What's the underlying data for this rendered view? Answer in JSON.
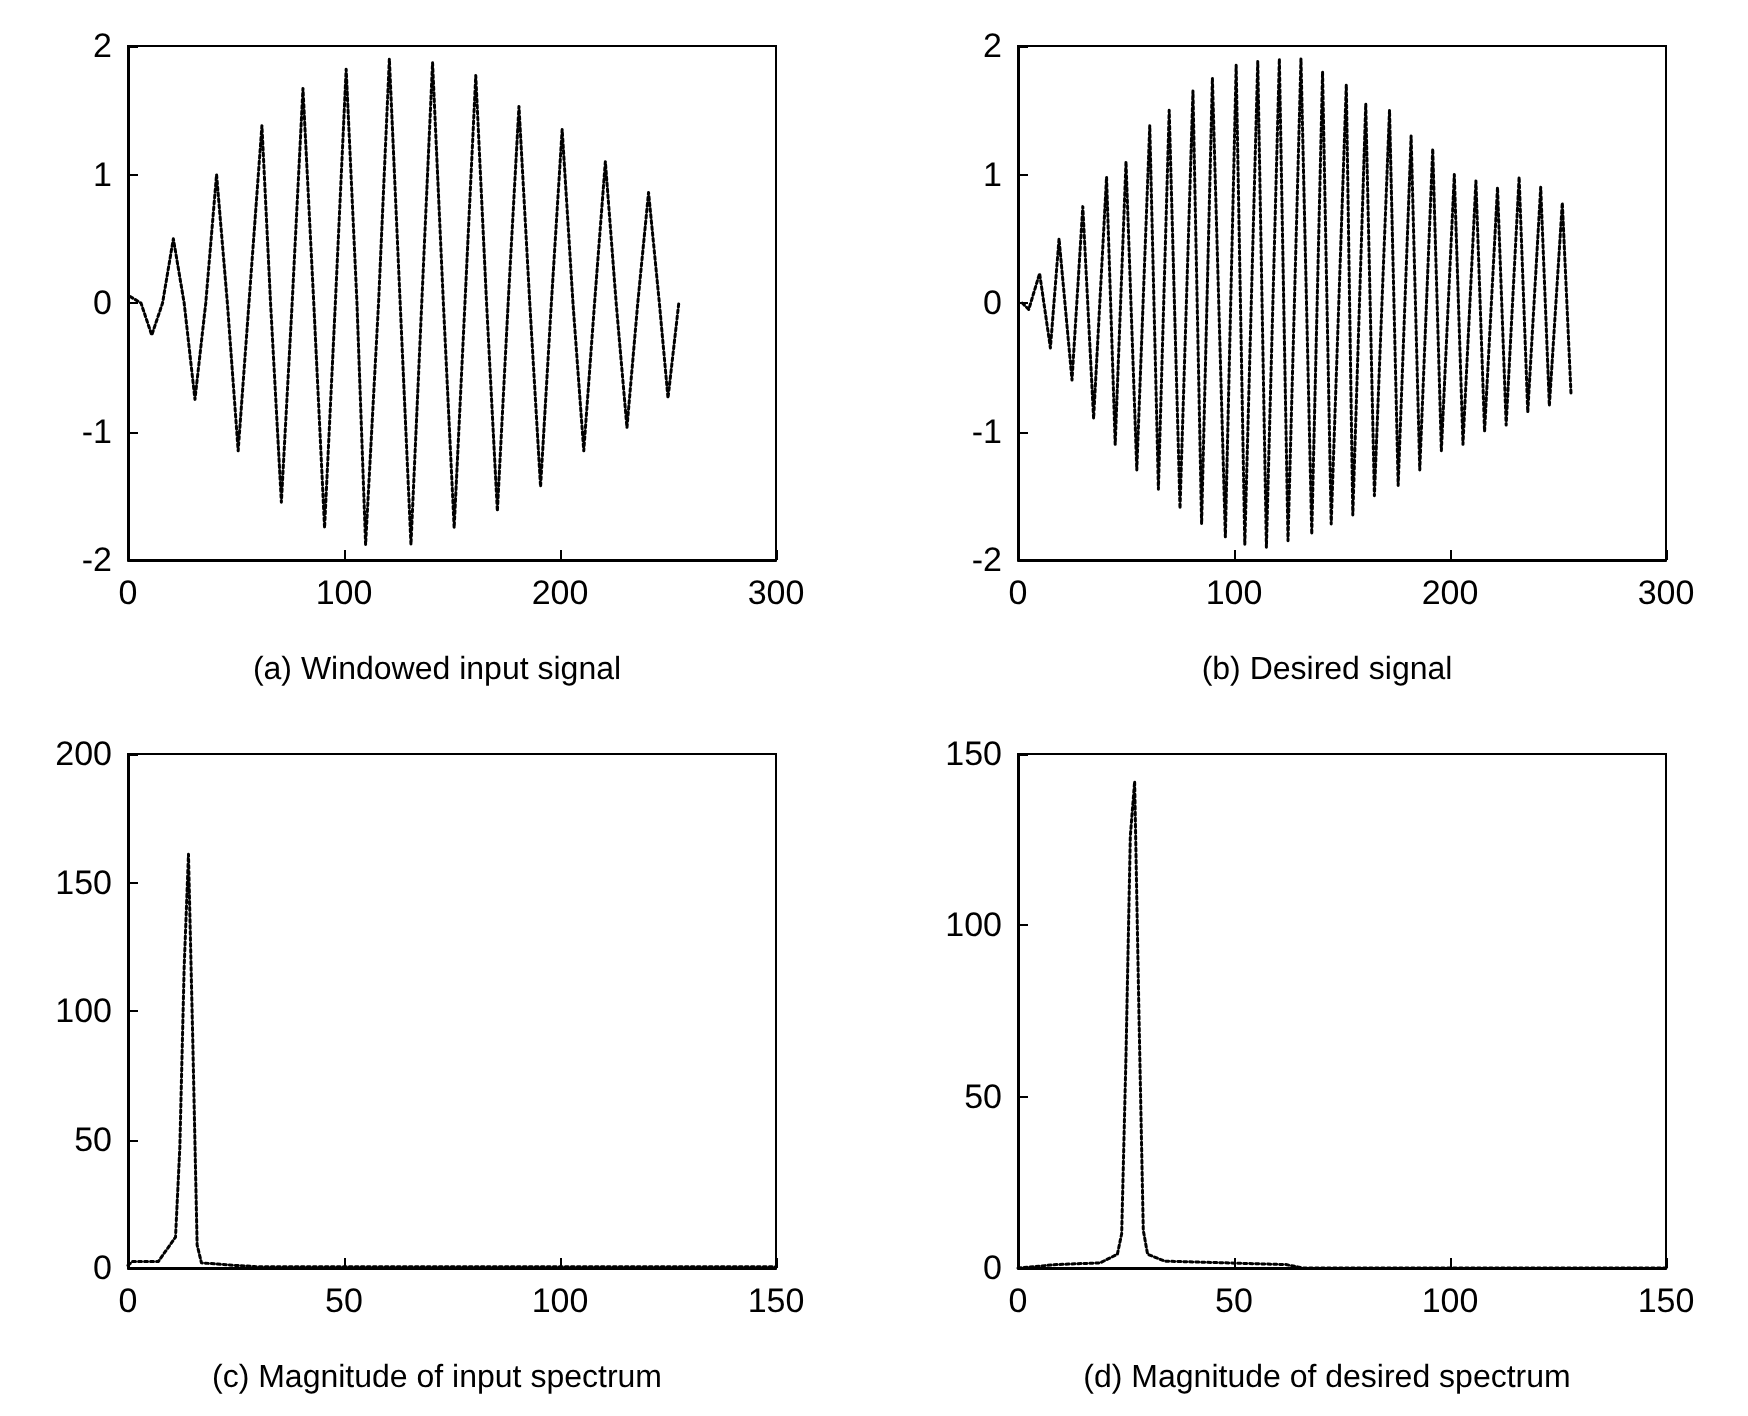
{
  "chart_data": [
    {
      "type": "line",
      "title": "(a) Windowed input signal",
      "color": "#000000",
      "line_style": "dotted",
      "xlim": [
        0,
        300
      ],
      "xticks": [
        0,
        100,
        200,
        300
      ],
      "ylim": [
        -2,
        2
      ],
      "yticks": [
        -2,
        -1,
        0,
        1,
        2
      ],
      "x": [
        1,
        6,
        11,
        16,
        21,
        26,
        31,
        36,
        41,
        46,
        51,
        56,
        62,
        66,
        71,
        76,
        81,
        86,
        91,
        96,
        101,
        106,
        110,
        116,
        121,
        126,
        131,
        136,
        141,
        146,
        151,
        156,
        161,
        166,
        171,
        176,
        181,
        186,
        191,
        196,
        201,
        206,
        211,
        216,
        221,
        226,
        231,
        236,
        241,
        246,
        250,
        255
      ],
      "values": [
        0.05,
        0,
        -0.25,
        0,
        0.5,
        0,
        -0.75,
        0,
        1.0,
        0,
        -1.15,
        0,
        1.38,
        0,
        -1.55,
        0,
        1.67,
        0,
        -1.75,
        0,
        1.82,
        0,
        -1.88,
        0,
        1.9,
        0,
        -1.88,
        0,
        1.87,
        0,
        -1.75,
        0,
        1.77,
        0,
        -1.62,
        0,
        1.53,
        0,
        -1.43,
        0,
        1.35,
        0,
        -1.15,
        0,
        1.1,
        0,
        -0.97,
        0,
        0.86,
        0,
        -0.74,
        0
      ]
    },
    {
      "type": "line",
      "title": "(b) Desired signal",
      "color": "#000000",
      "line_style": "dotted",
      "xlim": [
        0,
        300
      ],
      "xticks": [
        0,
        100,
        200,
        300
      ],
      "ylim": [
        -2,
        2
      ],
      "yticks": [
        -2,
        -1,
        0,
        1,
        2
      ],
      "x": [
        2,
        5,
        10,
        15,
        19,
        25,
        30,
        35,
        41,
        45,
        50,
        55,
        61,
        65,
        70,
        75,
        81,
        85,
        90,
        96,
        101,
        105,
        111,
        115,
        121,
        125,
        131,
        136,
        141,
        145,
        152,
        155,
        161,
        165,
        172,
        176,
        182,
        186,
        192,
        196,
        202,
        206,
        212,
        216,
        222,
        226,
        232,
        236,
        242,
        246,
        252,
        256
      ],
      "values": [
        0,
        -0.05,
        0.23,
        -0.35,
        0.5,
        -0.6,
        0.75,
        -0.9,
        0.98,
        -1.1,
        1.1,
        -1.3,
        1.38,
        -1.45,
        1.5,
        -1.6,
        1.65,
        -1.72,
        1.75,
        -1.82,
        1.85,
        -1.88,
        1.88,
        -1.9,
        1.9,
        -1.85,
        1.9,
        -1.8,
        1.8,
        -1.72,
        1.7,
        -1.65,
        1.55,
        -1.5,
        1.5,
        -1.42,
        1.3,
        -1.3,
        1.2,
        -1.15,
        1.0,
        -1.1,
        0.95,
        -1.0,
        0.9,
        -0.95,
        0.98,
        -0.85,
        0.9,
        -0.8,
        0.78,
        -0.7
      ]
    },
    {
      "type": "line",
      "title": "(c) Magnitude of input spectrum",
      "color": "#000000",
      "line_style": "dotted",
      "xlim": [
        0,
        150
      ],
      "xticks": [
        0,
        50,
        100,
        150
      ],
      "ylim": [
        0,
        200
      ],
      "yticks": [
        0,
        50,
        100,
        150,
        200
      ],
      "x": [
        0,
        1,
        7,
        11,
        12,
        13,
        14,
        15,
        16,
        17,
        25,
        30,
        60,
        100,
        150
      ],
      "values": [
        1,
        2.5,
        2.5,
        12,
        47,
        117,
        161,
        88,
        9,
        2,
        1,
        0.5,
        0.5,
        0.5,
        0.5
      ]
    },
    {
      "type": "line",
      "title": "(d) Magnitude of desired spectrum",
      "color": "#000000",
      "line_style": "dotted",
      "xlim": [
        0,
        150
      ],
      "xticks": [
        0,
        50,
        100,
        150
      ],
      "ylim": [
        0,
        150
      ],
      "yticks": [
        0,
        50,
        100,
        150
      ],
      "x": [
        0,
        9,
        19,
        23,
        24,
        25,
        26,
        27,
        28,
        29,
        30,
        34,
        62,
        66,
        150
      ],
      "values": [
        0,
        1,
        1.5,
        4,
        10,
        62,
        126,
        142,
        74,
        11,
        4,
        2,
        1,
        0,
        0
      ]
    }
  ]
}
